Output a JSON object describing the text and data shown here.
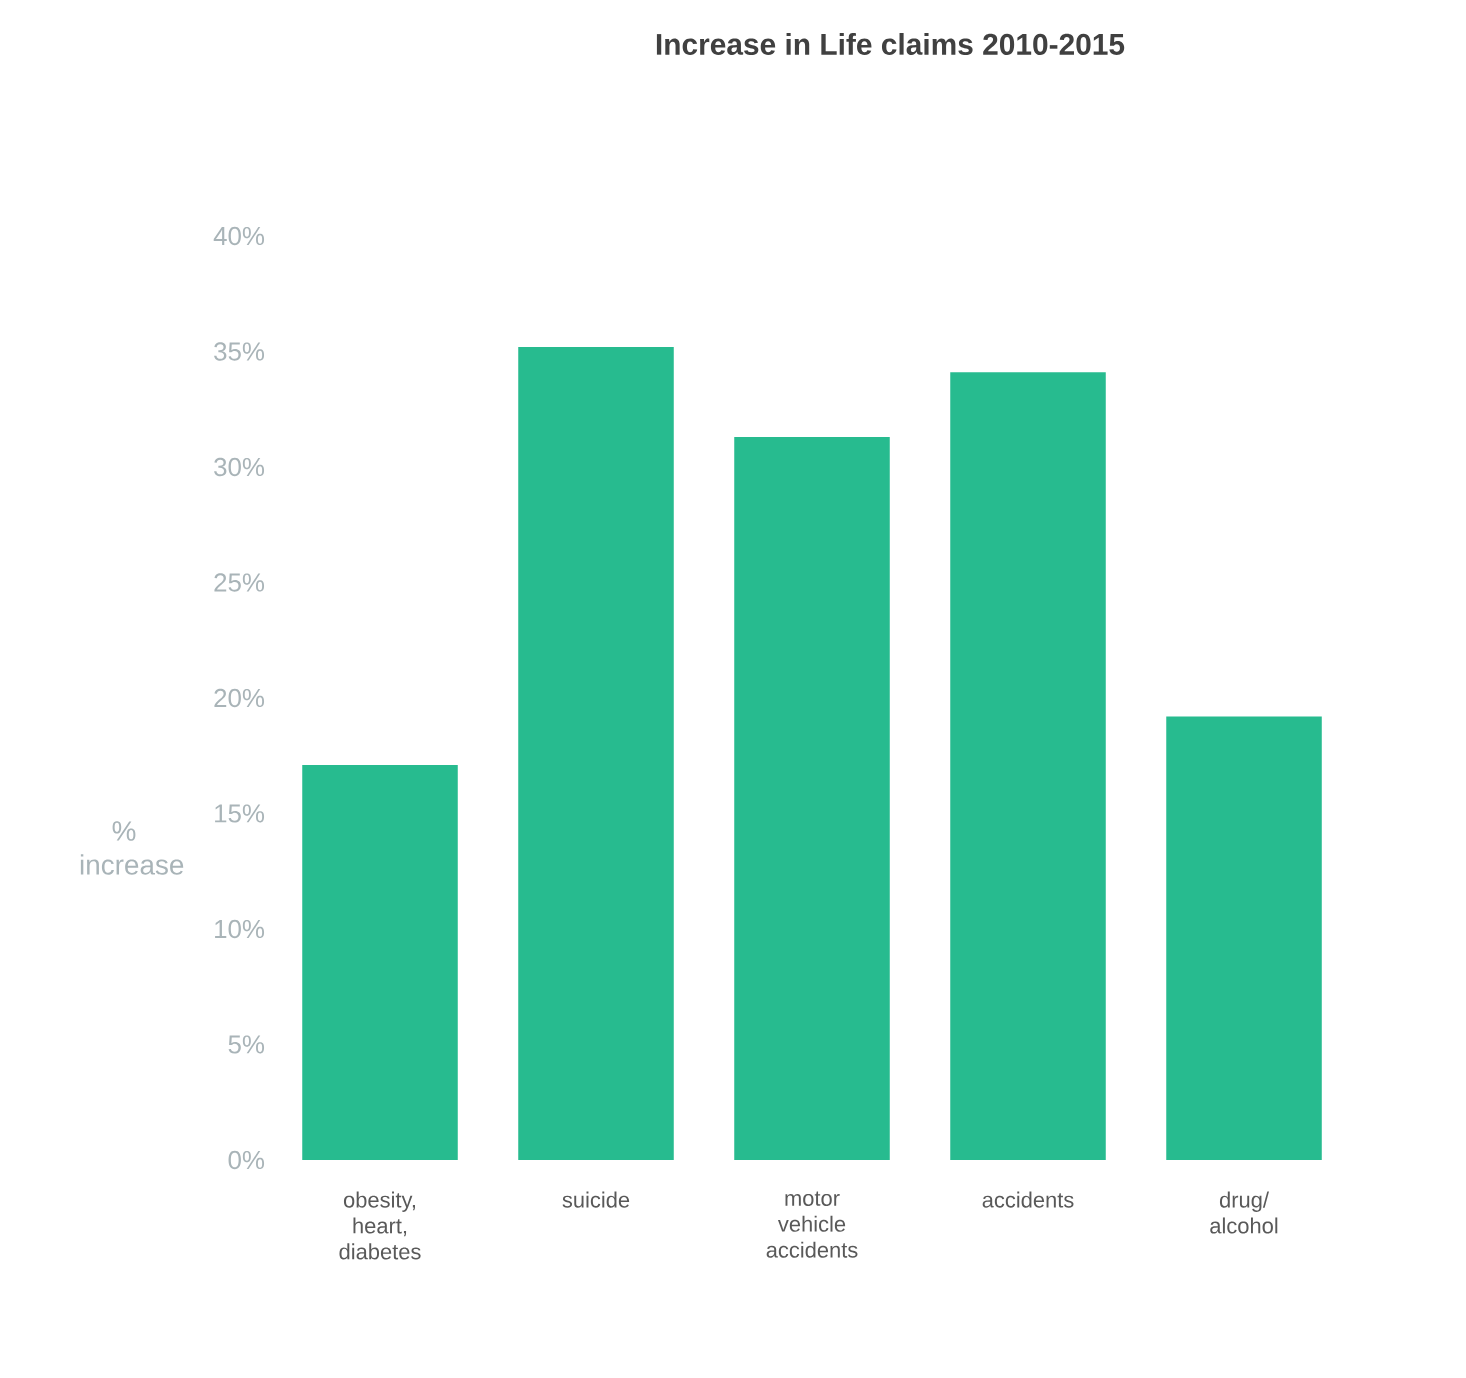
{
  "chart_data": {
    "type": "bar",
    "title": "Increase in Life claims 2010-2015",
    "ylabel": "% increase",
    "categories": [
      "obesity, heart, diabetes",
      "suicide",
      "motor vehicle accidents",
      "accidents",
      "drug/ alcohol"
    ],
    "values": [
      17.1,
      35.2,
      31.3,
      34.1,
      19.2
    ],
    "color": "#27bb8f",
    "ylim": [
      0,
      40
    ],
    "yticks": [
      {
        "value": 0,
        "label": "0%"
      },
      {
        "value": 5,
        "label": "5%"
      },
      {
        "value": 10,
        "label": "10%"
      },
      {
        "value": 15,
        "label": "15%"
      },
      {
        "value": 20,
        "label": "20%"
      },
      {
        "value": 25,
        "label": "25%"
      },
      {
        "value": 30,
        "label": "30%"
      },
      {
        "value": 35,
        "label": "35%"
      },
      {
        "value": 40,
        "label": "40%"
      }
    ],
    "grid": false
  }
}
